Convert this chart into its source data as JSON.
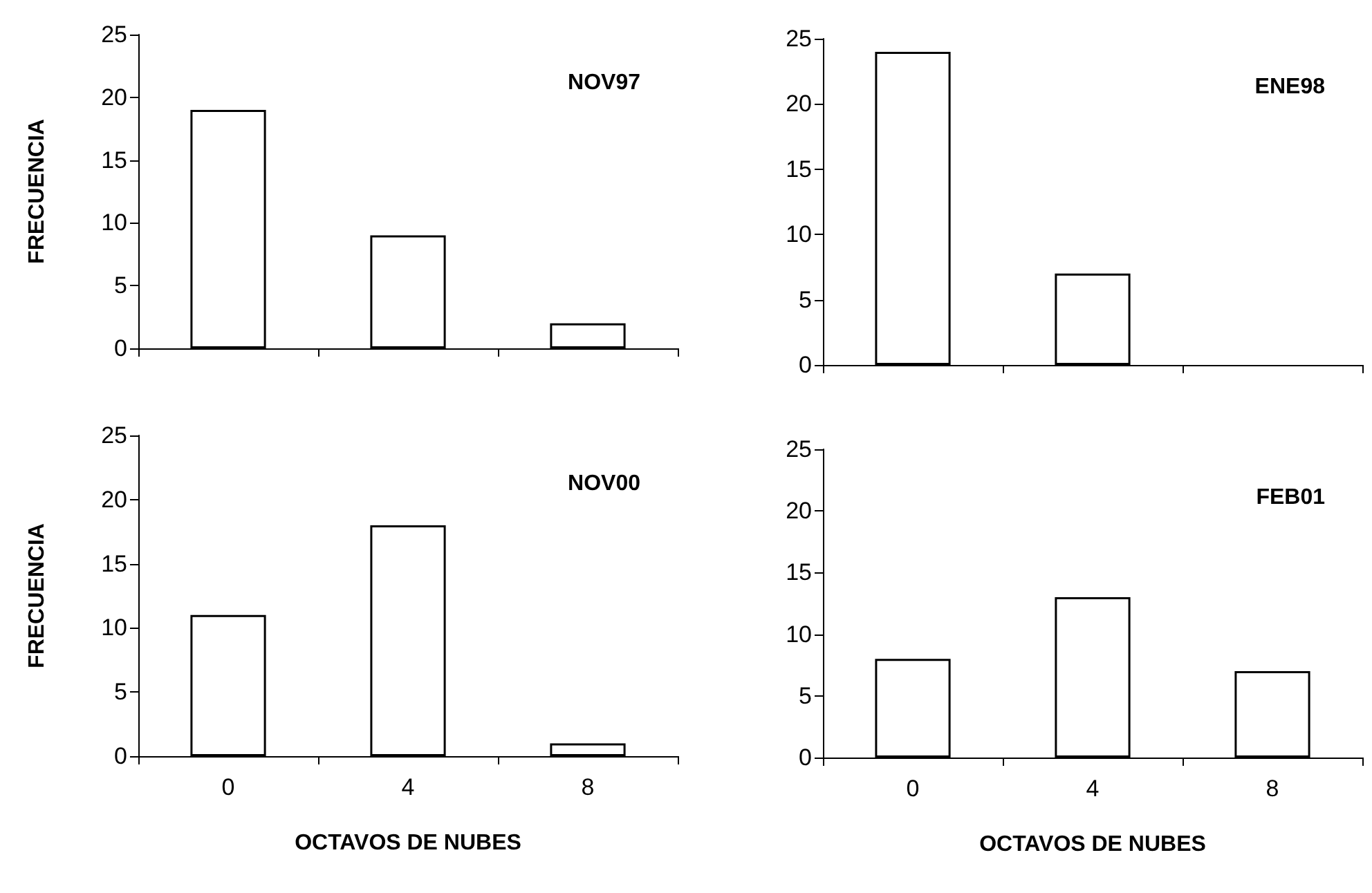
{
  "chart_data": [
    {
      "type": "bar",
      "title": "NOV97",
      "ylabel": "FRECUENCIA",
      "categories": [
        "0",
        "4",
        "8"
      ],
      "values": [
        19,
        9,
        2
      ],
      "color": "#ffffff",
      "ylim": [
        0,
        25
      ],
      "yticks": [
        0,
        5,
        10,
        15,
        20,
        25
      ],
      "grid": false,
      "tick_labels": "y"
    },
    {
      "type": "bar",
      "title": "ENE98",
      "categories": [
        "0",
        "4",
        "8"
      ],
      "values": [
        24,
        7,
        null
      ],
      "color": "#ffffff",
      "ylim": [
        0,
        25
      ],
      "yticks": [
        0,
        5,
        10,
        15,
        20,
        25
      ],
      "grid": false,
      "tick_labels": "y"
    },
    {
      "type": "bar",
      "title": "NOV00",
      "ylabel": "FRECUENCIA",
      "xlabel": "OCTAVOS DE NUBES",
      "categories": [
        "0",
        "4",
        "8"
      ],
      "values": [
        11,
        18,
        1
      ],
      "color": "#ffffff",
      "ylim": [
        0,
        25
      ],
      "yticks": [
        0,
        5,
        10,
        15,
        20,
        25
      ],
      "grid": false
    },
    {
      "type": "bar",
      "title": "FEB01",
      "xlabel": "OCTAVOS DE NUBES",
      "categories": [
        "0",
        "4",
        "8"
      ],
      "values": [
        8,
        13,
        7
      ],
      "color": "#ffffff",
      "ylim": [
        0,
        25
      ],
      "yticks": [
        0,
        5,
        10,
        15,
        20,
        25
      ],
      "grid": false
    }
  ]
}
